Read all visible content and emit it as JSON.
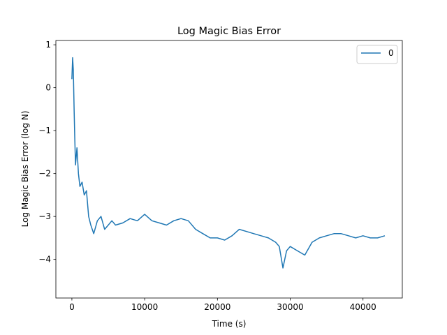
{
  "chart_data": {
    "type": "line",
    "title": "Log Magic Bias Error",
    "xlabel": "Time (s)",
    "ylabel": "Log Magic Bias Error (log N)",
    "xlim": [
      -2200,
      45400
    ],
    "ylim": [
      -4.9,
      1.1
    ],
    "xticks": [
      0,
      10000,
      20000,
      30000,
      40000
    ],
    "xtick_labels": [
      "0",
      "10000",
      "20000",
      "30000",
      "40000"
    ],
    "yticks": [
      1,
      0,
      -1,
      -2,
      -3,
      -4
    ],
    "ytick_labels": [
      "1",
      "0",
      "−1",
      "−2",
      "−3",
      "−4"
    ],
    "grid": false,
    "legend": {
      "position": "top-right",
      "entries": [
        "0"
      ]
    },
    "colors": {
      "series": "#1f77b4"
    },
    "series": [
      {
        "name": "0",
        "x": [
          0,
          100,
          200,
          300,
          400,
          500,
          700,
          900,
          1100,
          1400,
          1700,
          2000,
          2300,
          2600,
          3000,
          3500,
          4000,
          4500,
          5000,
          5500,
          6000,
          7000,
          8000,
          9000,
          10000,
          11000,
          12000,
          13000,
          14000,
          15000,
          16000,
          17000,
          18000,
          19000,
          20000,
          21000,
          22000,
          23000,
          24000,
          25000,
          26000,
          27000,
          28000,
          28500,
          29000,
          29500,
          30000,
          31000,
          32000,
          33000,
          34000,
          35000,
          36000,
          37000,
          38000,
          39000,
          40000,
          41000,
          42000,
          43000
        ],
        "y": [
          0.2,
          0.7,
          0.4,
          -0.5,
          -1.2,
          -1.8,
          -1.4,
          -2.0,
          -2.3,
          -2.2,
          -2.5,
          -2.4,
          -3.0,
          -3.2,
          -3.4,
          -3.1,
          -3.0,
          -3.3,
          -3.2,
          -3.1,
          -3.2,
          -3.15,
          -3.05,
          -3.1,
          -2.95,
          -3.1,
          -3.15,
          -3.2,
          -3.1,
          -3.05,
          -3.1,
          -3.3,
          -3.4,
          -3.5,
          -3.5,
          -3.55,
          -3.45,
          -3.3,
          -3.35,
          -3.4,
          -3.45,
          -3.5,
          -3.6,
          -3.7,
          -4.2,
          -3.8,
          -3.7,
          -3.8,
          -3.9,
          -3.6,
          -3.5,
          -3.45,
          -3.4,
          -3.4,
          -3.45,
          -3.5,
          -3.45,
          -3.5,
          -3.5,
          -3.45
        ]
      }
    ]
  }
}
